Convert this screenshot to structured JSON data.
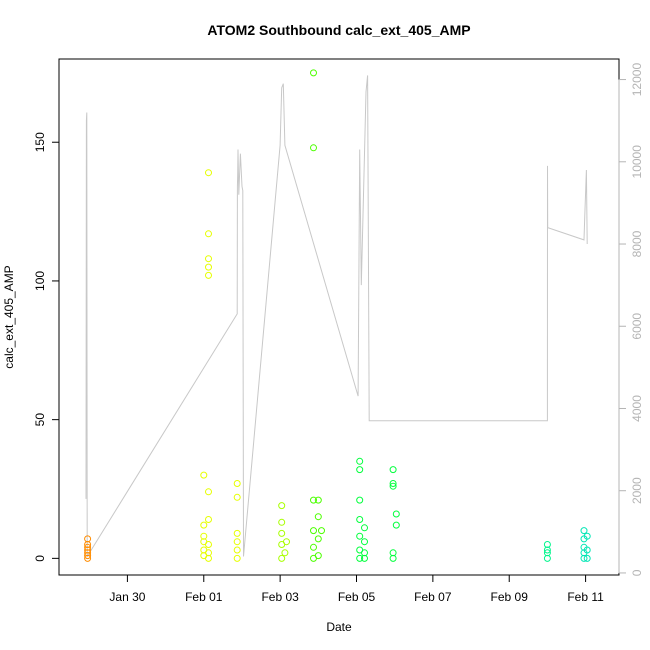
{
  "chart_data": {
    "type": "scatter",
    "title": "ATOM2 Southbound calc_ext_405_AMP",
    "xlabel": "Date",
    "ylabel": "calc_ext_405_AMP",
    "xlim": [
      "2024-01-28T05:00",
      "2024-02-11T21:00"
    ],
    "ylim": [
      -6,
      180
    ],
    "y2lim": [
      -50,
      12500
    ],
    "x_ticks": [
      "Jan 30",
      "Feb 01",
      "Feb 03",
      "Feb 05",
      "Feb 07",
      "Feb 09",
      "Feb 11"
    ],
    "x_tick_dates": [
      "2024-01-30",
      "2024-02-01",
      "2024-02-03",
      "2024-02-05",
      "2024-02-07",
      "2024-02-09",
      "2024-02-11"
    ],
    "y_ticks": [
      0,
      50,
      100,
      150
    ],
    "y2_ticks": [
      0,
      2000,
      4000,
      6000,
      8000,
      10000,
      12000
    ],
    "grid": false,
    "legend": "none",
    "colors": {
      "line": "#c8c8c8",
      "right_axis": "#b4b4b4",
      "point_colors": [
        "#ff8c00",
        "#e6ff00",
        "#a8ff00",
        "#4cff00",
        "#00ff3c",
        "#00f58c",
        "#00e6b4"
      ]
    },
    "series": [
      {
        "type": "points",
        "axis": "left",
        "points": [
          [
            "2024-01-28T23:00",
            7,
            0
          ],
          [
            "2024-01-28T23:00",
            4,
            0
          ],
          [
            "2024-01-28T23:00",
            2,
            0
          ],
          [
            "2024-01-28T23:00",
            1,
            0
          ],
          [
            "2024-01-28T23:00",
            0,
            0
          ],
          [
            "2024-01-28T23:00",
            3,
            0
          ],
          [
            "2024-01-28T23:00",
            5,
            0
          ],
          [
            "2024-02-01T00:00",
            1,
            1
          ],
          [
            "2024-02-01T00:00",
            3,
            1
          ],
          [
            "2024-02-01T00:00",
            6,
            1
          ],
          [
            "2024-02-01T00:00",
            8,
            1
          ],
          [
            "2024-02-01T00:00",
            12,
            1
          ],
          [
            "2024-02-01T00:00",
            30,
            1
          ],
          [
            "2024-02-01T03:00",
            2,
            1
          ],
          [
            "2024-02-01T03:00",
            5,
            1
          ],
          [
            "2024-02-01T03:00",
            14,
            1
          ],
          [
            "2024-02-01T03:00",
            24,
            1
          ],
          [
            "2024-02-01T03:00",
            139,
            1
          ],
          [
            "2024-02-01T03:00",
            117,
            1
          ],
          [
            "2024-02-01T03:00",
            108,
            1
          ],
          [
            "2024-02-01T03:00",
            105,
            1
          ],
          [
            "2024-02-01T03:00",
            102,
            1
          ],
          [
            "2024-02-01T03:00",
            0,
            1
          ],
          [
            "2024-02-01T21:00",
            0,
            1
          ],
          [
            "2024-02-01T21:00",
            3,
            1
          ],
          [
            "2024-02-01T21:00",
            6,
            1
          ],
          [
            "2024-02-01T21:00",
            9,
            1
          ],
          [
            "2024-02-01T21:00",
            22,
            1
          ],
          [
            "2024-02-01T21:00",
            27,
            1
          ],
          [
            "2024-02-03T01:00",
            0,
            2
          ],
          [
            "2024-02-03T01:00",
            5,
            2
          ],
          [
            "2024-02-03T01:00",
            9,
            2
          ],
          [
            "2024-02-03T01:00",
            13,
            2
          ],
          [
            "2024-02-03T01:00",
            19,
            2
          ],
          [
            "2024-02-03T03:00",
            2,
            2
          ],
          [
            "2024-02-03T04:00",
            6,
            2
          ],
          [
            "2024-02-03T21:00",
            0,
            3
          ],
          [
            "2024-02-03T21:00",
            4,
            3
          ],
          [
            "2024-02-03T21:00",
            10,
            3
          ],
          [
            "2024-02-03T21:00",
            21,
            3
          ],
          [
            "2024-02-03T21:00",
            148,
            3
          ],
          [
            "2024-02-03T21:00",
            175,
            3
          ],
          [
            "2024-02-04T00:00",
            1,
            3
          ],
          [
            "2024-02-04T00:00",
            7,
            3
          ],
          [
            "2024-02-04T00:00",
            15,
            3
          ],
          [
            "2024-02-04T00:00",
            21,
            3
          ],
          [
            "2024-02-04T02:00",
            10,
            3
          ],
          [
            "2024-02-05T02:00",
            0,
            4
          ],
          [
            "2024-02-05T02:00",
            3,
            4
          ],
          [
            "2024-02-05T02:00",
            8,
            4
          ],
          [
            "2024-02-05T02:00",
            14,
            4
          ],
          [
            "2024-02-05T02:00",
            21,
            4
          ],
          [
            "2024-02-05T02:00",
            32,
            4
          ],
          [
            "2024-02-05T02:00",
            35,
            4
          ],
          [
            "2024-02-05T05:00",
            0,
            4
          ],
          [
            "2024-02-05T05:00",
            2,
            4
          ],
          [
            "2024-02-05T05:00",
            6,
            4
          ],
          [
            "2024-02-05T05:00",
            11,
            4
          ],
          [
            "2024-02-05T23:00",
            0,
            4
          ],
          [
            "2024-02-05T23:00",
            2,
            4
          ],
          [
            "2024-02-05T23:00",
            26,
            4
          ],
          [
            "2024-02-05T23:00",
            27,
            4
          ],
          [
            "2024-02-05T23:00",
            32,
            4
          ],
          [
            "2024-02-06T01:00",
            12,
            4
          ],
          [
            "2024-02-06T01:00",
            16,
            4
          ],
          [
            "2024-02-10T00:00",
            0,
            5
          ],
          [
            "2024-02-10T00:00",
            2,
            5
          ],
          [
            "2024-02-10T00:00",
            3,
            5
          ],
          [
            "2024-02-10T00:00",
            5,
            5
          ],
          [
            "2024-02-10T23:00",
            0,
            6
          ],
          [
            "2024-02-10T23:00",
            2,
            6
          ],
          [
            "2024-02-10T23:00",
            4,
            6
          ],
          [
            "2024-02-10T23:00",
            7,
            6
          ],
          [
            "2024-02-10T23:00",
            10,
            6
          ],
          [
            "2024-02-11T01:00",
            0,
            6
          ],
          [
            "2024-02-11T01:00",
            3,
            6
          ],
          [
            "2024-02-11T01:00",
            8,
            6
          ]
        ]
      },
      {
        "type": "line",
        "axis": "right",
        "points": [
          [
            "2024-01-28T22:00",
            1800
          ],
          [
            "2024-01-28T22:15",
            11000
          ],
          [
            "2024-01-28T22:30",
            11200
          ],
          [
            "2024-01-28T22:45",
            400
          ],
          [
            "2024-02-01T21:00",
            6300
          ],
          [
            "2024-02-01T21:10",
            9400
          ],
          [
            "2024-02-01T21:20",
            9700
          ],
          [
            "2024-02-01T21:30",
            10300
          ],
          [
            "2024-02-01T22:00",
            9200
          ],
          [
            "2024-02-01T23:00",
            10200
          ],
          [
            "2024-02-02T00:00",
            9400
          ],
          [
            "2024-02-02T00:30",
            9300
          ],
          [
            "2024-02-02T01:00",
            400
          ],
          [
            "2024-02-03T00:00",
            10400
          ],
          [
            "2024-02-03T01:00",
            11800
          ],
          [
            "2024-02-03T02:00",
            11900
          ],
          [
            "2024-02-03T03:00",
            10400
          ],
          [
            "2024-02-05T01:00",
            4300
          ],
          [
            "2024-02-05T02:00",
            10300
          ],
          [
            "2024-02-05T03:00",
            7000
          ],
          [
            "2024-02-05T05:00",
            10200
          ],
          [
            "2024-02-05T06:00",
            11700
          ],
          [
            "2024-02-05T07:00",
            12100
          ],
          [
            "2024-02-05T08:00",
            3700
          ],
          [
            "2024-02-10T00:00",
            3700
          ],
          [
            "2024-02-10T00:05",
            9900
          ],
          [
            "2024-02-10T00:10",
            8400
          ],
          [
            "2024-02-10T23:00",
            8100
          ],
          [
            "2024-02-10T23:30",
            8700
          ],
          [
            "2024-02-11T00:30",
            9800
          ],
          [
            "2024-02-11T01:00",
            8000
          ]
        ]
      }
    ]
  }
}
